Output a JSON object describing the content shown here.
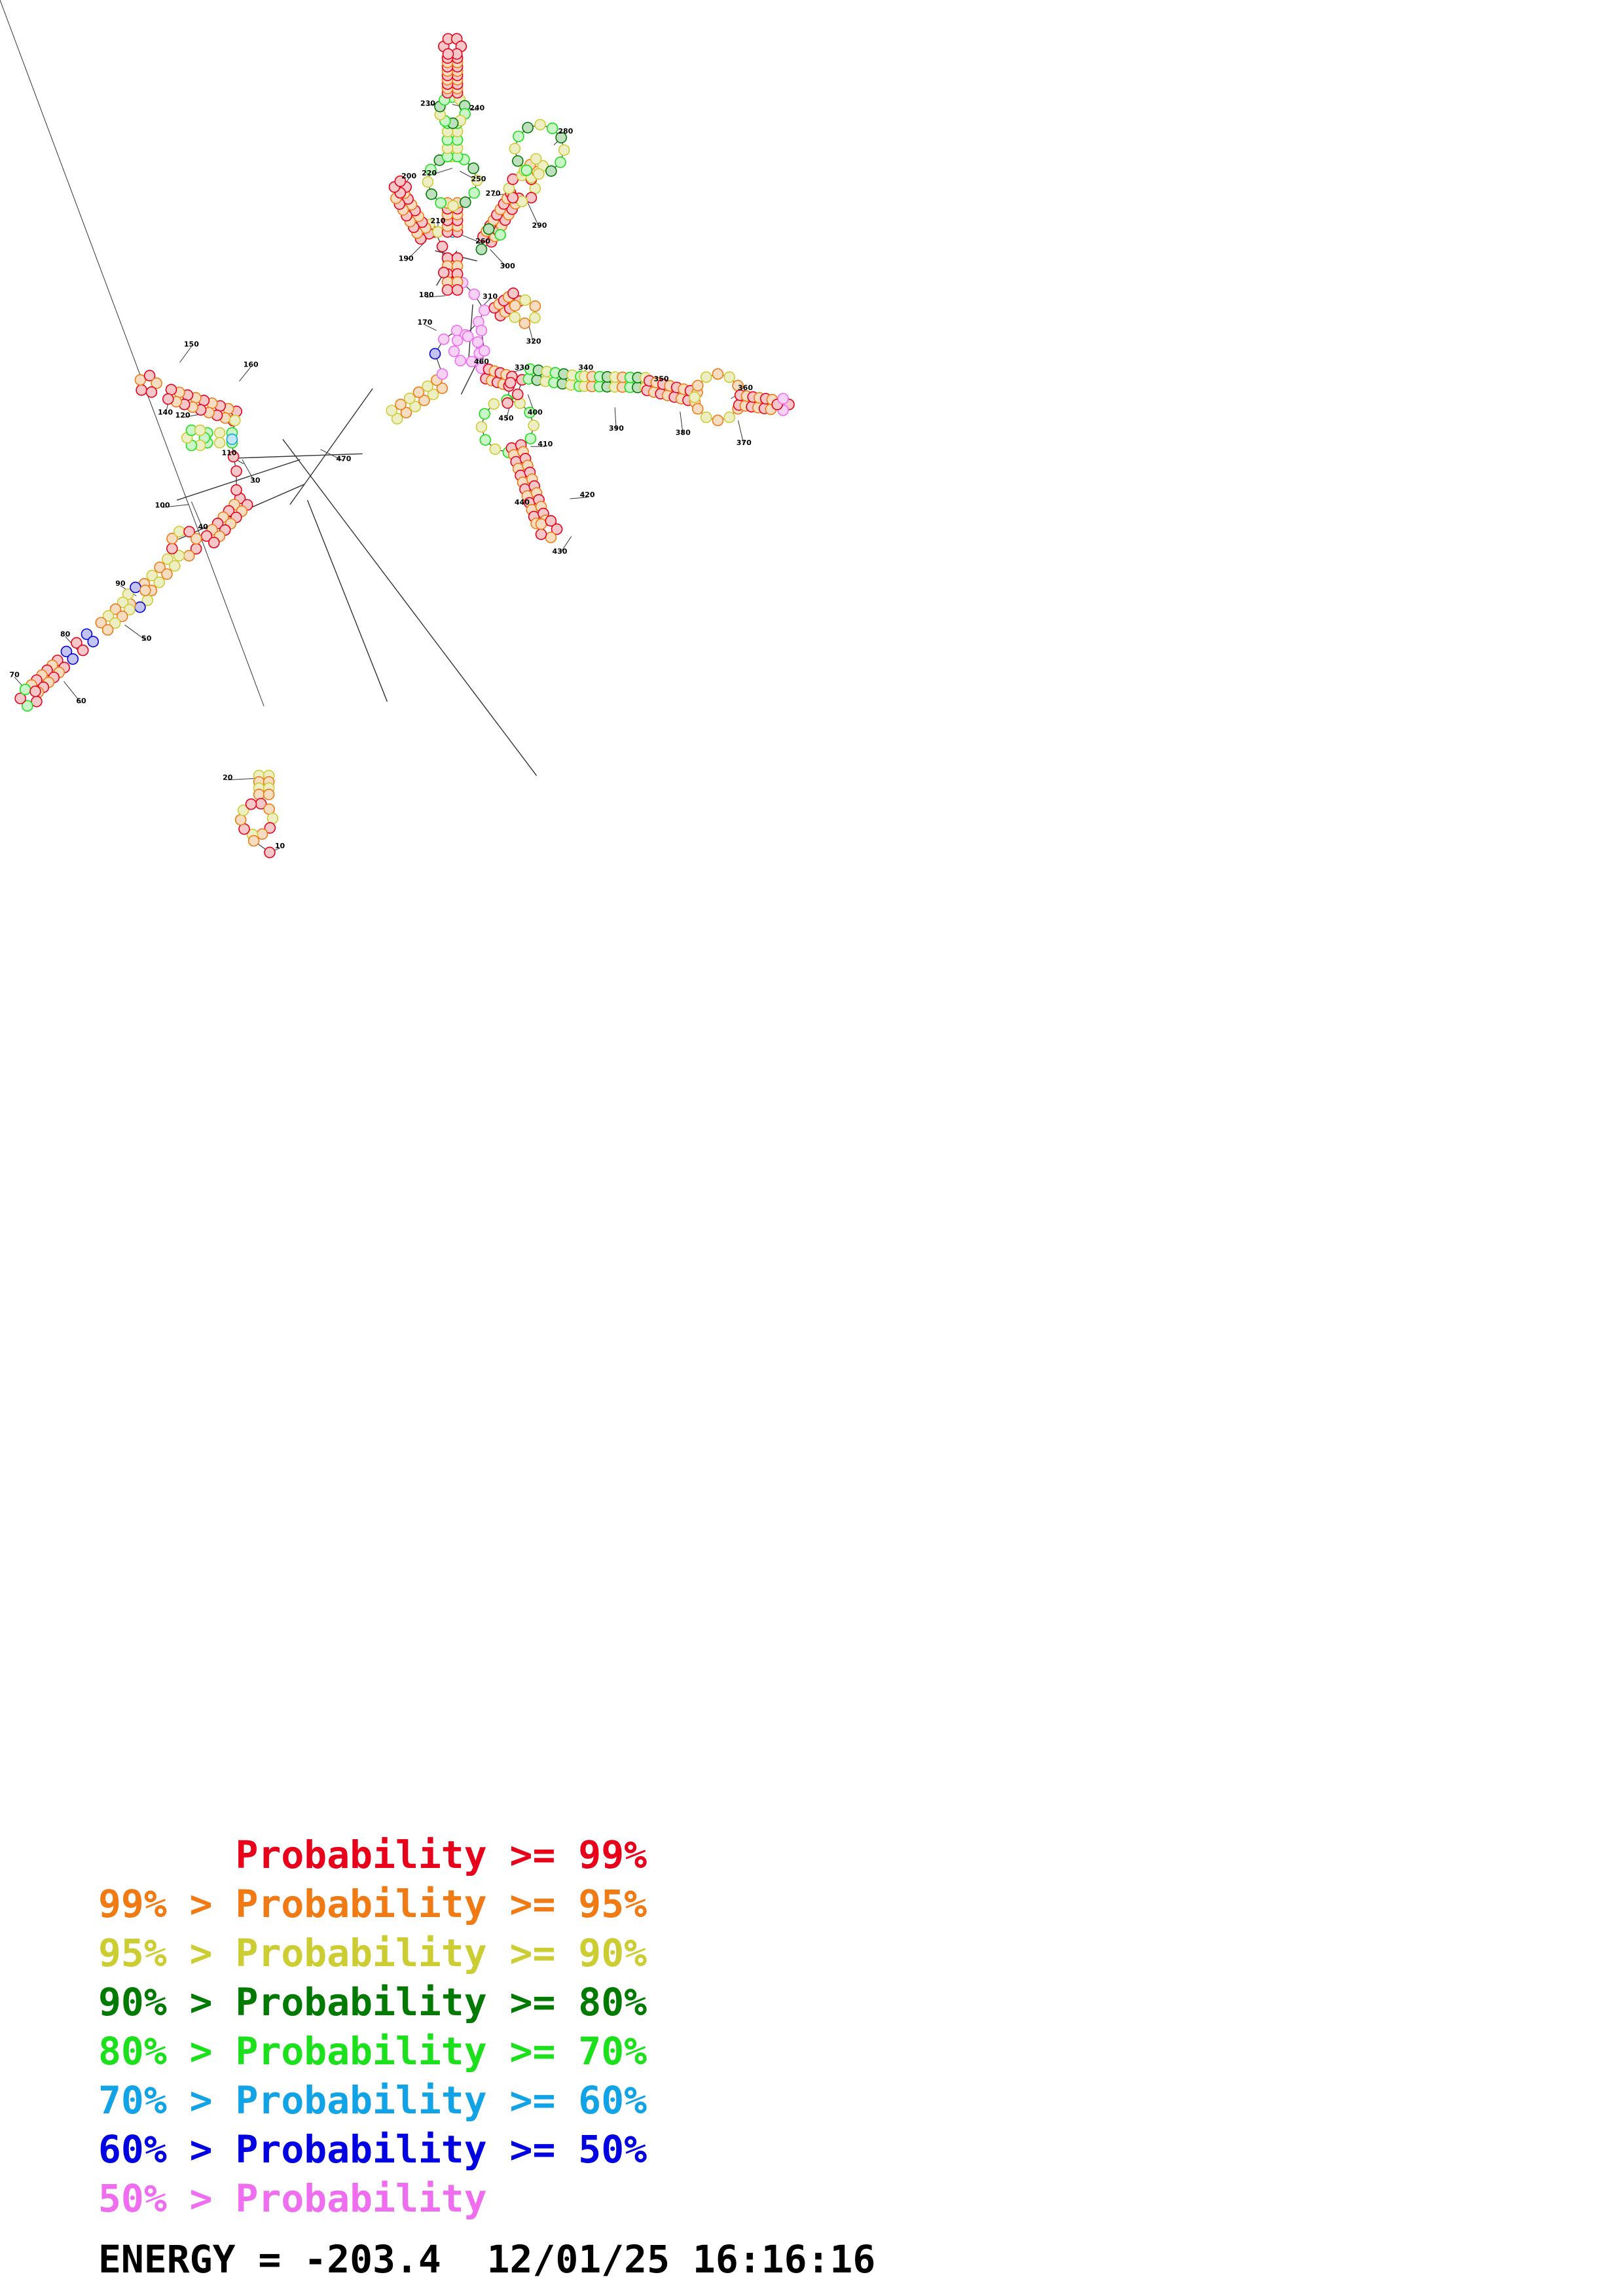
{
  "diagram": {
    "position_labels": [
      "10",
      "20",
      "30",
      "40",
      "50",
      "60",
      "70",
      "80",
      "90",
      "100",
      "110",
      "120",
      "130",
      "140",
      "150",
      "160",
      "170",
      "180",
      "190",
      "200",
      "210",
      "220",
      "230",
      "240",
      "250",
      "260",
      "270",
      "280",
      "290",
      "300",
      "310",
      "320",
      "330",
      "340",
      "350",
      "360",
      "370",
      "380",
      "390",
      "400",
      "410",
      "420",
      "430",
      "440",
      "450",
      "460",
      "470"
    ]
  },
  "legend": [
    {
      "lower": "",
      "op": "",
      "label": "Probability",
      "cmp": ">=",
      "upper": "99%",
      "color": "#e8001a"
    },
    {
      "lower": "99%",
      "op": ">",
      "label": "Probability",
      "cmp": ">=",
      "upper": "95%",
      "color": "#f07a14"
    },
    {
      "lower": "95%",
      "op": ">",
      "label": "Probability",
      "cmp": ">=",
      "upper": "90%",
      "color": "#cccc33"
    },
    {
      "lower": "90%",
      "op": ">",
      "label": "Probability",
      "cmp": ">=",
      "upper": "80%",
      "color": "#007a00"
    },
    {
      "lower": "80%",
      "op": ">",
      "label": "Probability",
      "cmp": ">=",
      "upper": "70%",
      "color": "#1be01b"
    },
    {
      "lower": "70%",
      "op": ">",
      "label": "Probability",
      "cmp": ">=",
      "upper": "60%",
      "color": "#12a3e6"
    },
    {
      "lower": "60%",
      "op": ">",
      "label": "Probability",
      "cmp": ">=",
      "upper": "50%",
      "color": "#0000e0"
    },
    {
      "lower": "50%",
      "op": ">",
      "label": "Probability",
      "cmp": "",
      "upper": "",
      "color": "#ef6eef"
    }
  ],
  "energy": {
    "label": "ENERGY =",
    "value": "-203.4",
    "date": "12/01/25",
    "time": "16:16:16"
  }
}
